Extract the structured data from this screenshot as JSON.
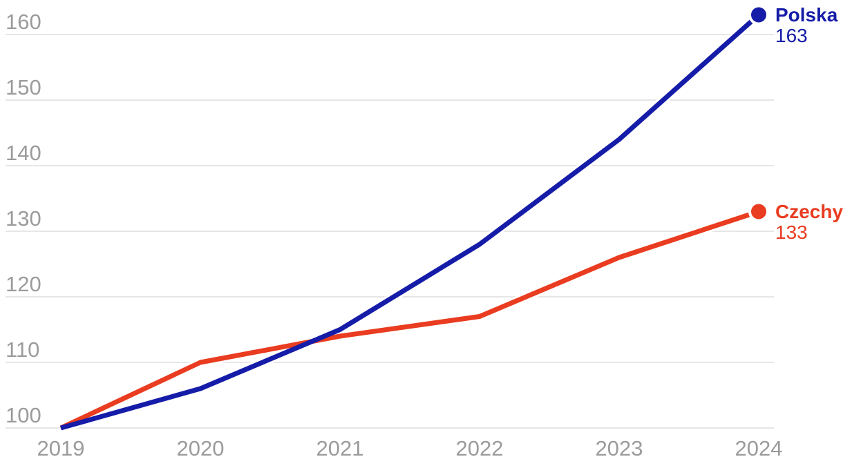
{
  "chart_data": {
    "type": "line",
    "title": "",
    "xlabel": "",
    "ylabel": "",
    "x": [
      2019,
      2020,
      2021,
      2022,
      2023,
      2024
    ],
    "x_tick_labels": [
      "2019",
      "2020",
      "2021",
      "2022",
      "2023",
      "2024"
    ],
    "y_ticks": [
      100,
      110,
      120,
      130,
      140,
      150,
      160
    ],
    "y_tick_labels": [
      "100",
      "110",
      "120",
      "130",
      "140",
      "150",
      "160"
    ],
    "ylim": [
      100,
      163
    ],
    "grid": true,
    "legend_position": "end-of-line-labels",
    "series": [
      {
        "name": "Czechy",
        "values": [
          100,
          110,
          114,
          117,
          126,
          133
        ],
        "color": "#e93c20",
        "end_label_name": "Czechy",
        "end_label_value": "133"
      },
      {
        "name": "Polska",
        "values": [
          100,
          106,
          115,
          128,
          144,
          163
        ],
        "color": "#151ca8",
        "end_label_name": "Polska",
        "end_label_value": "163"
      }
    ]
  },
  "colors": {
    "background": "#ffffff",
    "gridline": "#e6e6e6",
    "axis_text": "#9b9b9b",
    "polska_blue": "#151ca8",
    "czechy_red": "#e93c20"
  }
}
